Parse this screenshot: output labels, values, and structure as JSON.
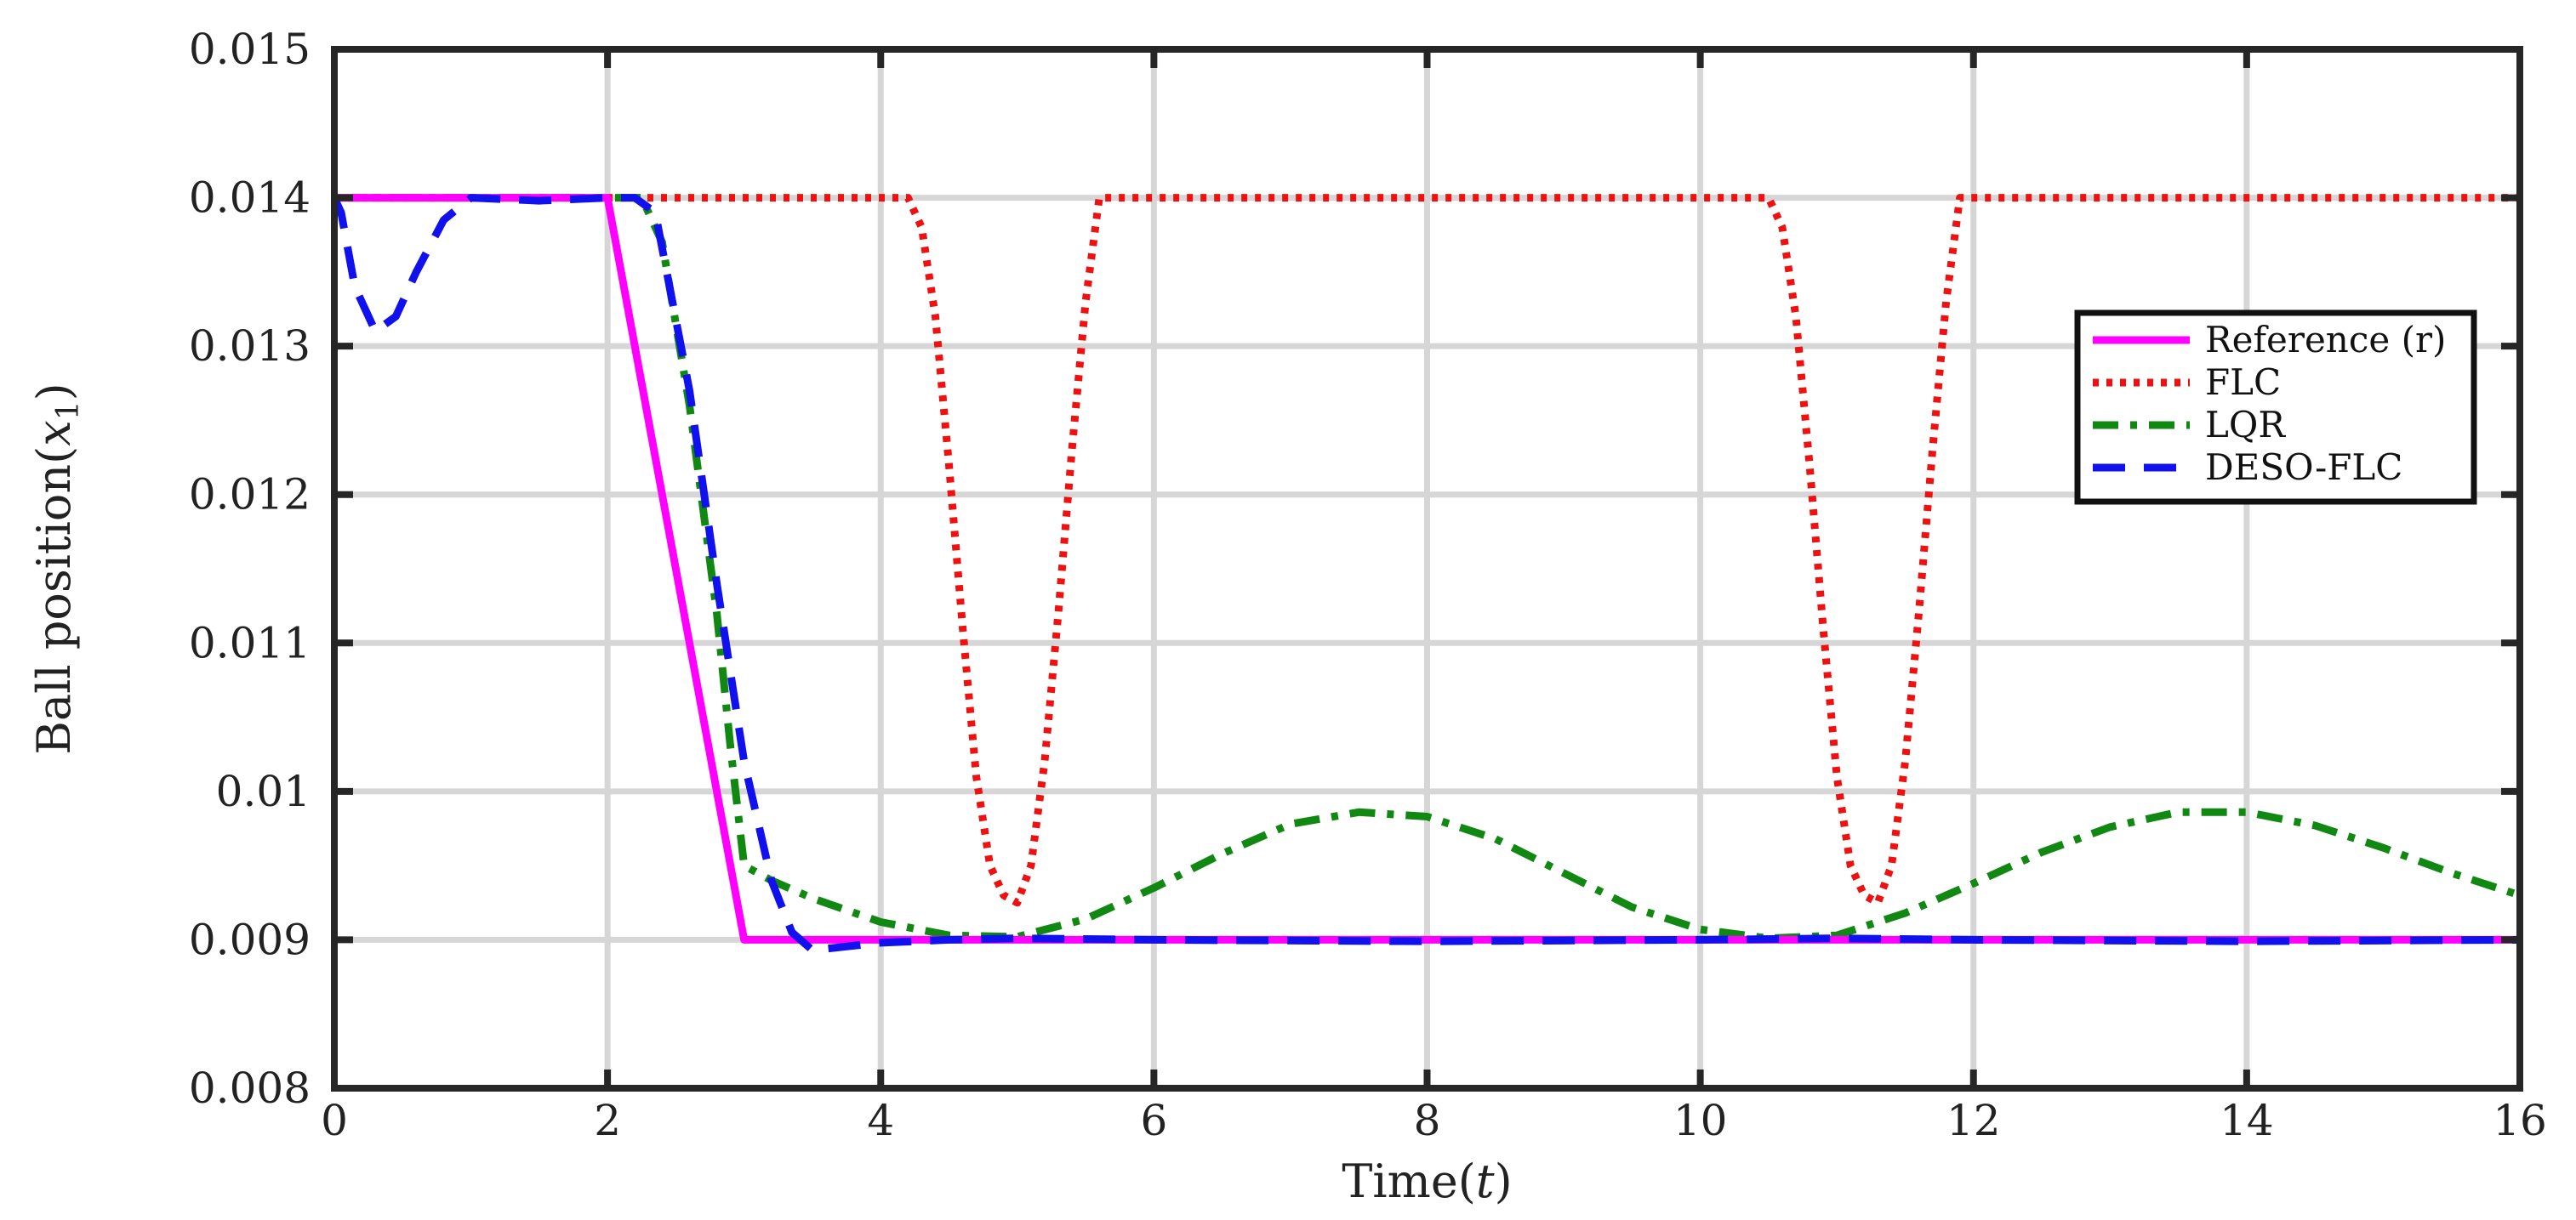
{
  "chart_data": {
    "type": "line",
    "xlabel": "Time",
    "xlabel_var": "t",
    "ylabel": "Ball position",
    "ylabel_var": "x",
    "ylabel_sub": "1",
    "xlim": [
      0,
      16
    ],
    "ylim": [
      0.008,
      0.015
    ],
    "xticks": [
      "0",
      "2",
      "4",
      "6",
      "8",
      "10",
      "12",
      "14",
      "16"
    ],
    "yticks": [
      "0.008",
      "0.009",
      "0.01",
      "0.011",
      "0.012",
      "0.013",
      "0.014",
      "0.015"
    ],
    "grid": true,
    "legend_position": "right",
    "series": [
      {
        "name": "Reference (r)",
        "color": "#ff00ff",
        "style": "solid",
        "x": [
          0,
          2,
          3,
          16
        ],
        "y": [
          0.014,
          0.014,
          0.009,
          0.009
        ]
      },
      {
        "name": "FLC",
        "color": "#ee1111",
        "style": "dotted",
        "x": [
          0,
          4.2,
          4.3,
          4.4,
          4.5,
          4.6,
          4.7,
          4.8,
          4.9,
          5.0,
          5.1,
          5.2,
          5.3,
          5.4,
          5.5,
          5.6,
          10.5,
          10.6,
          10.7,
          10.8,
          10.9,
          11.0,
          11.1,
          11.2,
          11.3,
          11.4,
          11.5,
          11.6,
          11.7,
          11.8,
          11.9,
          16
        ],
        "y": [
          0.014,
          0.014,
          0.0138,
          0.0132,
          0.0122,
          0.0111,
          0.0101,
          0.0095,
          0.0093,
          0.00925,
          0.0095,
          0.0102,
          0.0112,
          0.0123,
          0.0133,
          0.014,
          0.014,
          0.0138,
          0.0132,
          0.0122,
          0.0111,
          0.0101,
          0.0095,
          0.0093,
          0.00925,
          0.0095,
          0.0102,
          0.0112,
          0.0123,
          0.0133,
          0.014,
          0.014
        ]
      },
      {
        "name": "LQR",
        "color": "#118811",
        "style": "dashdot",
        "x": [
          0,
          2.25,
          2.4,
          2.6,
          2.8,
          2.9,
          3.0,
          3.2,
          3.5,
          4.0,
          4.5,
          5.0,
          5.5,
          6.0,
          6.5,
          7.0,
          7.5,
          8.0,
          8.5,
          9.0,
          9.5,
          10.0,
          10.5,
          11.0,
          11.5,
          12.0,
          12.5,
          13.0,
          13.5,
          14.0,
          14.5,
          15.0,
          15.5,
          16.0
        ],
        "y": [
          0.014,
          0.014,
          0.0137,
          0.0126,
          0.0112,
          0.0103,
          0.0095,
          0.0094,
          0.00928,
          0.00912,
          0.00903,
          0.00902,
          0.00914,
          0.00935,
          0.00958,
          0.00978,
          0.00986,
          0.00983,
          0.00968,
          0.00945,
          0.00922,
          0.00907,
          0.00901,
          0.00903,
          0.00918,
          0.00938,
          0.00959,
          0.00976,
          0.00986,
          0.00986,
          0.00977,
          0.00962,
          0.00945,
          0.0093
        ]
      },
      {
        "name": "DESO-FLC",
        "color": "#1111ee",
        "style": "dashed",
        "x": [
          0,
          0.05,
          0.15,
          0.3,
          0.45,
          0.6,
          0.8,
          1.0,
          1.5,
          2.0,
          2.2,
          2.35,
          2.6,
          2.8,
          3.0,
          3.2,
          3.35,
          3.5,
          3.7,
          4.0,
          4.5,
          5.0,
          6.0,
          8.0,
          10.0,
          11.0,
          12.0,
          14.0,
          16.0
        ],
        "y": [
          0.014,
          0.0139,
          0.0134,
          0.0131,
          0.0132,
          0.0135,
          0.01385,
          0.014,
          0.01398,
          0.014,
          0.014,
          0.0139,
          0.0127,
          0.0114,
          0.0102,
          0.0094,
          0.00905,
          0.00893,
          0.00895,
          0.00898,
          0.009,
          0.00901,
          0.009,
          0.00899,
          0.009,
          0.00901,
          0.009,
          0.00899,
          0.009
        ]
      }
    ]
  }
}
